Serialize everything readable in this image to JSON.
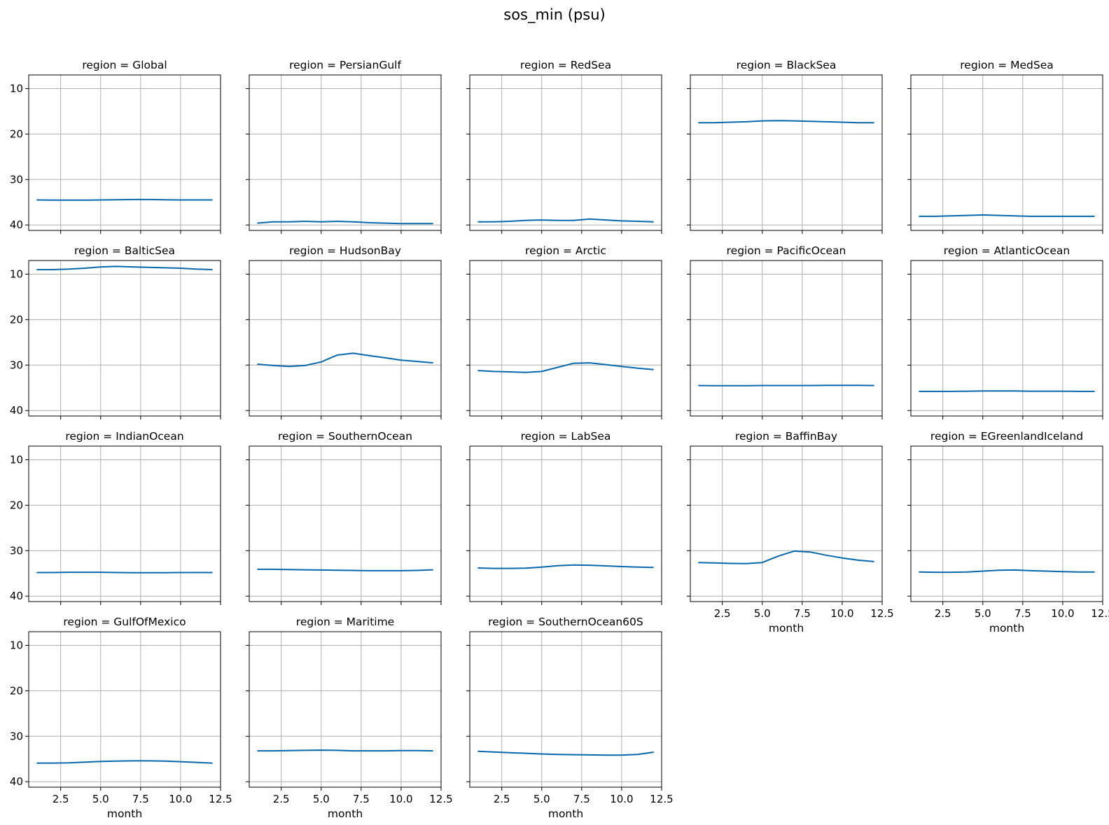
{
  "figure": {
    "title": "sos_min (psu)"
  },
  "style": {
    "line_color": "#0868ac",
    "grid_color": "#b0b0b0",
    "axis_color": "#000000"
  },
  "shared_axes": {
    "xlabel": "month",
    "xlim": [
      0.5,
      12.5
    ],
    "xticks": [
      2.5,
      5.0,
      7.5,
      10.0,
      12.5
    ],
    "xtick_labels": [
      "2.5",
      "5.0",
      "7.5",
      "10.0",
      "12.5"
    ],
    "ylim": [
      41.2,
      7.0
    ],
    "yticks": [
      10,
      20,
      30,
      40
    ],
    "ytick_labels": [
      "10",
      "20",
      "30",
      "40"
    ],
    "y_inverted": true,
    "grid": true
  },
  "chart_data": [
    {
      "type": "line",
      "title": "region = Global",
      "x": [
        1,
        2,
        3,
        4,
        5,
        6,
        7,
        8,
        9,
        10,
        11,
        12
      ],
      "values": [
        34.5,
        34.55,
        34.55,
        34.55,
        34.5,
        34.45,
        34.4,
        34.4,
        34.45,
        34.5,
        34.5,
        34.5
      ]
    },
    {
      "type": "line",
      "title": "region = PersianGulf",
      "x": [
        1,
        2,
        3,
        4,
        5,
        6,
        7,
        8,
        9,
        10,
        11,
        12
      ],
      "values": [
        39.6,
        39.3,
        39.3,
        39.2,
        39.3,
        39.2,
        39.3,
        39.5,
        39.6,
        39.7,
        39.7,
        39.7
      ]
    },
    {
      "type": "line",
      "title": "region = RedSea",
      "x": [
        1,
        2,
        3,
        4,
        5,
        6,
        7,
        8,
        9,
        10,
        11,
        12
      ],
      "values": [
        39.3,
        39.3,
        39.2,
        39.0,
        38.9,
        39.0,
        39.0,
        38.7,
        38.9,
        39.1,
        39.2,
        39.3
      ]
    },
    {
      "type": "line",
      "title": "region = BlackSea",
      "x": [
        1,
        2,
        3,
        4,
        5,
        6,
        7,
        8,
        9,
        10,
        11,
        12
      ],
      "values": [
        17.5,
        17.5,
        17.4,
        17.3,
        17.1,
        17.05,
        17.1,
        17.2,
        17.3,
        17.4,
        17.5,
        17.5
      ]
    },
    {
      "type": "line",
      "title": "region = MedSea",
      "x": [
        1,
        2,
        3,
        4,
        5,
        6,
        7,
        8,
        9,
        10,
        11,
        12
      ],
      "values": [
        38.1,
        38.1,
        38.0,
        37.9,
        37.8,
        37.9,
        38.0,
        38.1,
        38.1,
        38.1,
        38.1,
        38.1
      ]
    },
    {
      "type": "line",
      "title": "region = BalticSea",
      "x": [
        1,
        2,
        3,
        4,
        5,
        6,
        7,
        8,
        9,
        10,
        11,
        12
      ],
      "values": [
        9.0,
        9.0,
        8.9,
        8.7,
        8.4,
        8.3,
        8.4,
        8.5,
        8.6,
        8.7,
        8.9,
        9.0
      ]
    },
    {
      "type": "line",
      "title": "region = HudsonBay",
      "x": [
        1,
        2,
        3,
        4,
        5,
        6,
        7,
        8,
        9,
        10,
        11,
        12
      ],
      "values": [
        29.8,
        30.1,
        30.3,
        30.1,
        29.3,
        27.8,
        27.4,
        27.9,
        28.4,
        28.9,
        29.2,
        29.5
      ]
    },
    {
      "type": "line",
      "title": "region = Arctic",
      "x": [
        1,
        2,
        3,
        4,
        5,
        6,
        7,
        8,
        9,
        10,
        11,
        12
      ],
      "values": [
        31.2,
        31.4,
        31.5,
        31.6,
        31.4,
        30.5,
        29.6,
        29.5,
        29.9,
        30.3,
        30.7,
        31.0
      ]
    },
    {
      "type": "line",
      "title": "region = PacificOcean",
      "x": [
        1,
        2,
        3,
        4,
        5,
        6,
        7,
        8,
        9,
        10,
        11,
        12
      ],
      "values": [
        34.5,
        34.55,
        34.55,
        34.55,
        34.5,
        34.5,
        34.5,
        34.5,
        34.45,
        34.45,
        34.45,
        34.5
      ]
    },
    {
      "type": "line",
      "title": "region = AtlanticOcean",
      "x": [
        1,
        2,
        3,
        4,
        5,
        6,
        7,
        8,
        9,
        10,
        11,
        12
      ],
      "values": [
        35.8,
        35.8,
        35.8,
        35.75,
        35.7,
        35.7,
        35.7,
        35.75,
        35.75,
        35.75,
        35.8,
        35.8
      ]
    },
    {
      "type": "line",
      "title": "region = IndianOcean",
      "x": [
        1,
        2,
        3,
        4,
        5,
        6,
        7,
        8,
        9,
        10,
        11,
        12
      ],
      "values": [
        34.8,
        34.8,
        34.75,
        34.75,
        34.75,
        34.8,
        34.85,
        34.85,
        34.85,
        34.8,
        34.8,
        34.8
      ]
    },
    {
      "type": "line",
      "title": "region = SouthernOcean",
      "x": [
        1,
        2,
        3,
        4,
        5,
        6,
        7,
        8,
        9,
        10,
        11,
        12
      ],
      "values": [
        34.1,
        34.1,
        34.15,
        34.2,
        34.25,
        34.3,
        34.35,
        34.4,
        34.4,
        34.4,
        34.35,
        34.2
      ]
    },
    {
      "type": "line",
      "title": "region = LabSea",
      "x": [
        1,
        2,
        3,
        4,
        5,
        6,
        7,
        8,
        9,
        10,
        11,
        12
      ],
      "values": [
        33.8,
        33.9,
        33.9,
        33.85,
        33.6,
        33.3,
        33.15,
        33.2,
        33.35,
        33.5,
        33.6,
        33.7
      ]
    },
    {
      "type": "line",
      "title": "region = BaffinBay",
      "x": [
        1,
        2,
        3,
        4,
        5,
        6,
        7,
        8,
        9,
        10,
        11,
        12
      ],
      "values": [
        32.6,
        32.7,
        32.8,
        32.85,
        32.6,
        31.2,
        30.1,
        30.3,
        31.0,
        31.6,
        32.1,
        32.4
      ]
    },
    {
      "type": "line",
      "title": "region = EGreenlandIceland",
      "x": [
        1,
        2,
        3,
        4,
        5,
        6,
        7,
        8,
        9,
        10,
        11,
        12
      ],
      "values": [
        34.7,
        34.75,
        34.75,
        34.7,
        34.5,
        34.3,
        34.25,
        34.4,
        34.5,
        34.6,
        34.7,
        34.7
      ]
    },
    {
      "type": "line",
      "title": "region = GulfOfMexico",
      "x": [
        1,
        2,
        3,
        4,
        5,
        6,
        7,
        8,
        9,
        10,
        11,
        12
      ],
      "values": [
        35.9,
        35.9,
        35.85,
        35.7,
        35.55,
        35.45,
        35.4,
        35.4,
        35.45,
        35.6,
        35.75,
        35.9
      ]
    },
    {
      "type": "line",
      "title": "region = Maritime",
      "x": [
        1,
        2,
        3,
        4,
        5,
        6,
        7,
        8,
        9,
        10,
        11,
        12
      ],
      "values": [
        33.2,
        33.2,
        33.15,
        33.1,
        33.05,
        33.1,
        33.2,
        33.2,
        33.2,
        33.15,
        33.15,
        33.2
      ]
    },
    {
      "type": "line",
      "title": "region = SouthernOcean60S",
      "x": [
        1,
        2,
        3,
        4,
        5,
        6,
        7,
        8,
        9,
        10,
        11,
        12
      ],
      "values": [
        33.3,
        33.45,
        33.6,
        33.75,
        33.9,
        34.0,
        34.05,
        34.1,
        34.15,
        34.15,
        34.0,
        33.5
      ]
    }
  ]
}
